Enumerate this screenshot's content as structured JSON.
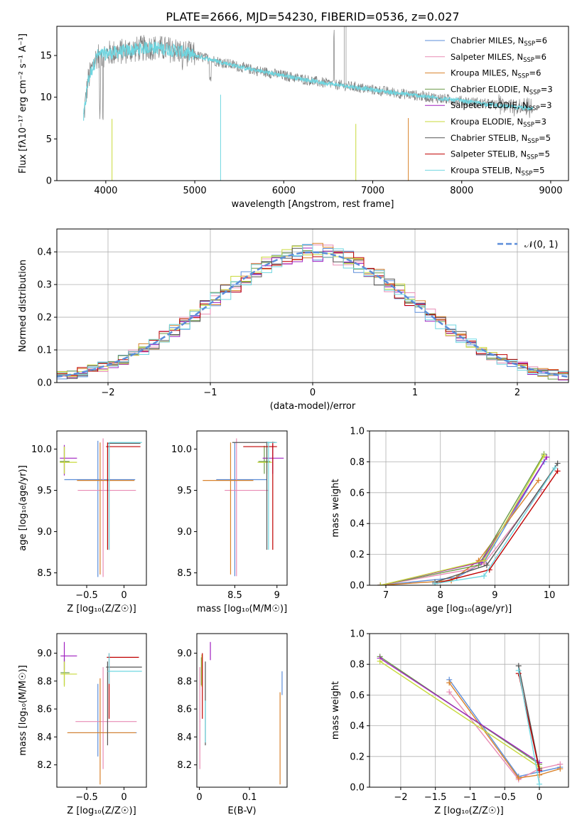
{
  "title": "PLATE=2666, MJD=54230, FIBERID=0536, z=0.027",
  "series": [
    {
      "name": "Chabrier MILES, N",
      "sub": "SSP",
      "suffix": "=6",
      "color": "#5b8dd9"
    },
    {
      "name": "Salpeter MILES, N",
      "sub": "SSP",
      "suffix": "=6",
      "color": "#e88bb4"
    },
    {
      "name": "Kroupa MILES, N",
      "sub": "SSP",
      "suffix": "=6",
      "color": "#d9822b"
    },
    {
      "name": "Chabrier ELODIE, N",
      "sub": "SSP",
      "suffix": "=3",
      "color": "#6b9b4a"
    },
    {
      "name": "Salpeter ELODIE, N",
      "sub": "SSP",
      "suffix": "=3",
      "color": "#a020c0"
    },
    {
      "name": "Kroupa ELODIE, N",
      "sub": "SSP",
      "suffix": "=3",
      "color": "#c8d93a"
    },
    {
      "name": "Chabrier STELIB, N",
      "sub": "SSP",
      "suffix": "=5",
      "color": "#555555"
    },
    {
      "name": "Salpeter STELIB, N",
      "sub": "SSP",
      "suffix": "=5",
      "color": "#c00000"
    },
    {
      "name": "Kroupa STELIB, N",
      "sub": "SSP",
      "suffix": "=5",
      "color": "#6fd6e0"
    }
  ],
  "chart_data": [
    {
      "type": "line",
      "panel": "spectrum",
      "xlabel": "wavelength [Angstrom, rest frame]",
      "ylabel": "Flux [fλ10⁻¹⁷ erg cm⁻² s⁻¹ A⁻¹]",
      "xlim": [
        3450,
        9200
      ],
      "ylim": [
        0,
        18.5
      ],
      "xticks": [
        4000,
        5000,
        6000,
        7000,
        8000,
        9000
      ],
      "yticks": [
        0,
        5,
        10,
        15
      ],
      "data_color": "#808080",
      "model_color": "#6fd6e0",
      "spectrum_anchors": [
        [
          3750,
          7.5
        ],
        [
          3800,
          12
        ],
        [
          3900,
          15
        ],
        [
          4000,
          15.2
        ],
        [
          4200,
          15.5
        ],
        [
          4500,
          16
        ],
        [
          4800,
          15.6
        ],
        [
          5000,
          15
        ],
        [
          5300,
          14.2
        ],
        [
          5600,
          13.4
        ],
        [
          6000,
          12.6
        ],
        [
          6400,
          11.8
        ],
        [
          6800,
          11.2
        ],
        [
          7200,
          10.6
        ],
        [
          7500,
          10.2
        ],
        [
          7800,
          9.8
        ],
        [
          8200,
          9.3
        ],
        [
          8500,
          8.9
        ],
        [
          8800,
          8.6
        ],
        [
          9000,
          8.5
        ]
      ],
      "legend_loc": "upper right",
      "grid": false
    },
    {
      "type": "histogram",
      "panel": "residuals",
      "xlabel": "(data-model)/error",
      "ylabel": "Normed distribution",
      "xlim": [
        -2.5,
        2.5
      ],
      "ylim": [
        0,
        0.47
      ],
      "xticks": [
        -2,
        -1,
        0,
        1,
        2
      ],
      "yticks": [
        0.0,
        0.1,
        0.2,
        0.3,
        0.4
      ],
      "gaussian_label": "𝒩(0, 1)",
      "gaussian_color": "#5b8dd9",
      "legend_loc": "upper right",
      "grid": true
    },
    {
      "type": "scatter",
      "panel": "age-vs-Z",
      "xlabel": "Z [log₁₀(Z/Z☉)]",
      "ylabel": "age  [log₁₀(age/yr)]",
      "xlim": [
        -0.9,
        0.3
      ],
      "ylim": [
        8.35,
        10.22
      ],
      "xticks": [
        -0.5,
        0.0
      ],
      "yticks": [
        8.5,
        9.0,
        9.5,
        10.0
      ],
      "grid": false
    },
    {
      "type": "scatter",
      "panel": "age-vs-mass",
      "xlabel": "mass [log₁₀(M/M☉)]",
      "ylabel": "",
      "xlim": [
        8.05,
        9.12
      ],
      "ylim": [
        8.35,
        10.22
      ],
      "xticks": [
        8.5,
        9.0
      ],
      "yticks": [
        8.5,
        9.0,
        9.5,
        10.0
      ],
      "grid": false
    },
    {
      "type": "line",
      "panel": "weight-vs-age",
      "xlabel": "age  [log₁₀(age/yr)]",
      "ylabel": "mass weight",
      "xlim": [
        6.7,
        10.35
      ],
      "ylim": [
        0.0,
        1.0
      ],
      "xticks": [
        7,
        8,
        9,
        10
      ],
      "yticks": [
        0.0,
        0.2,
        0.4,
        0.6,
        0.8,
        1.0
      ],
      "series": [
        {
          "x": [
            6.9,
            8.3,
            8.8,
            9.9
          ],
          "y": [
            0.0,
            0.05,
            0.15,
            0.8
          ]
        },
        {
          "x": [
            6.9,
            8.5,
            8.8,
            9.85
          ],
          "y": [
            0.0,
            0.1,
            0.14,
            0.62
          ]
        },
        {
          "x": [
            6.9,
            8.2,
            8.7,
            9.8
          ],
          "y": [
            0.0,
            0.03,
            0.16,
            0.68
          ]
        },
        {
          "x": [
            6.9,
            8.7,
            9.9
          ],
          "y": [
            0.0,
            0.13,
            0.85
          ]
        },
        {
          "x": [
            6.9,
            8.75,
            9.95
          ],
          "y": [
            0.0,
            0.15,
            0.83
          ]
        },
        {
          "x": [
            6.9,
            8.8,
            9.9
          ],
          "y": [
            0.0,
            0.16,
            0.84
          ]
        },
        {
          "x": [
            7.9,
            8.85,
            10.15
          ],
          "y": [
            0.02,
            0.13,
            0.79
          ]
        },
        {
          "x": [
            7.9,
            8.9,
            10.15
          ],
          "y": [
            0.01,
            0.1,
            0.74
          ]
        },
        {
          "x": [
            7.9,
            8.8,
            10.1
          ],
          "y": [
            0.01,
            0.06,
            0.76
          ]
        }
      ],
      "grid": true
    },
    {
      "type": "scatter",
      "panel": "mass-vs-Z",
      "xlabel": "Z [log₁₀(Z/Z☉)]",
      "ylabel": "mass [log₁₀(M/M☉)]",
      "xlim": [
        -0.9,
        0.3
      ],
      "ylim": [
        8.04,
        9.14
      ],
      "xticks": [
        -0.5,
        0.0
      ],
      "yticks": [
        8.2,
        8.4,
        8.6,
        8.8,
        9.0
      ],
      "grid": false
    },
    {
      "type": "scatter",
      "panel": "mass-vs-EBV",
      "xlabel": "E(B-V)",
      "ylabel": "",
      "xlim": [
        -0.005,
        0.175
      ],
      "ylim": [
        8.04,
        9.14
      ],
      "xticks": [
        0.0,
        0.1
      ],
      "yticks": [
        8.2,
        8.4,
        8.6,
        8.8,
        9.0
      ],
      "grid": false
    },
    {
      "type": "line",
      "panel": "weight-vs-Z",
      "xlabel": "Z [log₁₀(Z/Z☉)]",
      "ylabel": "mass weight",
      "xlim": [
        -2.45,
        0.42
      ],
      "ylim": [
        0.0,
        1.0
      ],
      "xticks": [
        -2.0,
        -1.5,
        -1.0,
        -0.5,
        0.0
      ],
      "yticks": [
        0.0,
        0.2,
        0.4,
        0.6,
        0.8,
        1.0
      ],
      "series": [
        {
          "x": [
            -1.3,
            -0.3,
            0.0,
            0.3
          ],
          "y": [
            0.7,
            0.07,
            0.1,
            0.13
          ]
        },
        {
          "x": [
            -1.3,
            -0.3,
            0.0,
            0.3
          ],
          "y": [
            0.62,
            0.05,
            0.12,
            0.15
          ]
        },
        {
          "x": [
            -1.3,
            -0.3,
            0.0,
            0.3
          ],
          "y": [
            0.68,
            0.06,
            0.08,
            0.12
          ]
        },
        {
          "x": [
            -2.3,
            0.0
          ],
          "y": [
            0.85,
            0.15
          ]
        },
        {
          "x": [
            -2.3,
            0.0
          ],
          "y": [
            0.84,
            0.16
          ]
        },
        {
          "x": [
            -2.3,
            0.0
          ],
          "y": [
            0.82,
            0.13
          ]
        },
        {
          "x": [
            -0.3,
            0.0
          ],
          "y": [
            0.79,
            0.12
          ]
        },
        {
          "x": [
            -0.3,
            0.0
          ],
          "y": [
            0.74,
            0.11
          ]
        },
        {
          "x": [
            -0.3,
            0.0
          ],
          "y": [
            0.76,
            0.02
          ]
        }
      ],
      "grid": true
    }
  ]
}
